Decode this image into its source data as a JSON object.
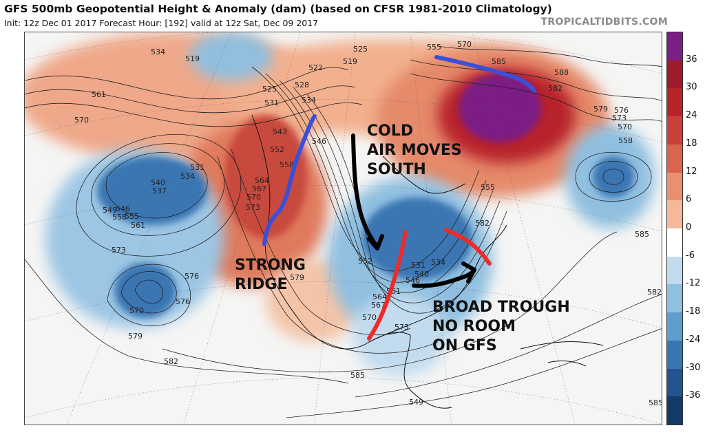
{
  "header": {
    "title": "GFS 500mb Geopotential Height & Anomaly (dam) (based on CFSR 1981-2010 Climatology)",
    "subtitle": "Init: 12z Dec 01 2017   Forecast Hour: [192]   valid at 12z Sat, Dec 09 2017",
    "site": "TROPICALTIDBITS.COM"
  },
  "colorbar": {
    "ticks": [
      "36",
      "30",
      "24",
      "18",
      "12",
      "6",
      "0",
      "-6",
      "-12",
      "-18",
      "-24",
      "-30",
      "-36"
    ],
    "colors": [
      "#7b1f84",
      "#9e1b2c",
      "#b8242a",
      "#c9413a",
      "#d9654f",
      "#e8906f",
      "#f4b99a",
      "#ffffff",
      "#c2dbee",
      "#90bfe0",
      "#5f9dcc",
      "#3a76b3",
      "#23548f",
      "#143a6a"
    ]
  },
  "annotations": {
    "cold_air": [
      "COLD",
      "AIR MOVES",
      "SOUTH"
    ],
    "strong_ridge": [
      "STRONG",
      "RIDGE"
    ],
    "broad_trough": [
      "BROAD TROUGH",
      "NO ROOM",
      "ON GFS"
    ]
  },
  "contour_labels": [
    "534",
    "519",
    "561",
    "570",
    "525",
    "528",
    "531",
    "534",
    "543",
    "546",
    "552",
    "558",
    "564",
    "567",
    "570",
    "573",
    "522",
    "519",
    "525",
    "540",
    "537",
    "549",
    "546",
    "555",
    "558",
    "561",
    "531",
    "534",
    "573",
    "570",
    "576",
    "579",
    "552",
    "531",
    "540",
    "534",
    "546",
    "561",
    "564",
    "567",
    "570",
    "573",
    "576",
    "579",
    "582",
    "585",
    "549",
    "555",
    "570",
    "585",
    "588",
    "582",
    "579",
    "576",
    "573",
    "570",
    "558",
    "555",
    "582",
    "585",
    "582",
    "585"
  ]
}
